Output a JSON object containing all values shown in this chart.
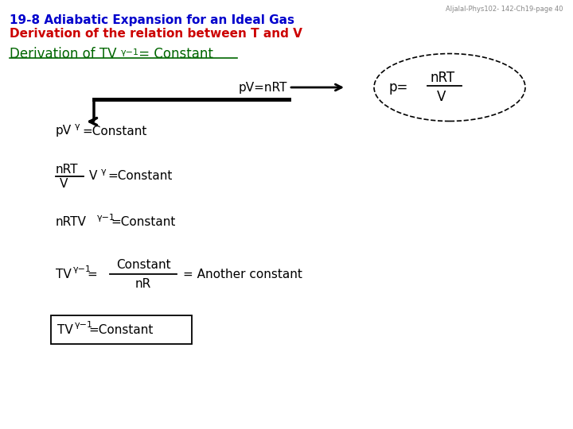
{
  "title_line1": "19-8 Adiabatic Expansion for an Ideal Gas",
  "title_line2": "Derivation of the relation between T and V",
  "title_color1": "#0000CC",
  "title_color2": "#CC0000",
  "watermark": "Aljalal-Phys102- 142-Ch19-page 40",
  "heading_color": "#006600",
  "bg_color": "#FFFFFF",
  "text_color": "#000000"
}
